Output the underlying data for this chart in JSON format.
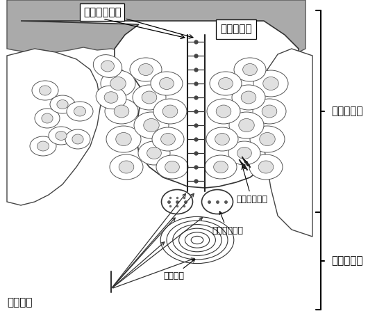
{
  "labels": {
    "top_label": "棚状神経終末",
    "top_right_label": "角　質　層",
    "right_label_1": "表　皮　層",
    "right_label_2": "真　皮　層",
    "bottom_left_label": "神経繊維",
    "bottom_mid_label": "層板小体",
    "mid_right_label": "メルケル細胞",
    "mid_right2_label": "分裂中の細胞"
  },
  "bg_color": "#ffffff",
  "fig_width": 5.3,
  "fig_height": 4.57,
  "dpi": 100
}
